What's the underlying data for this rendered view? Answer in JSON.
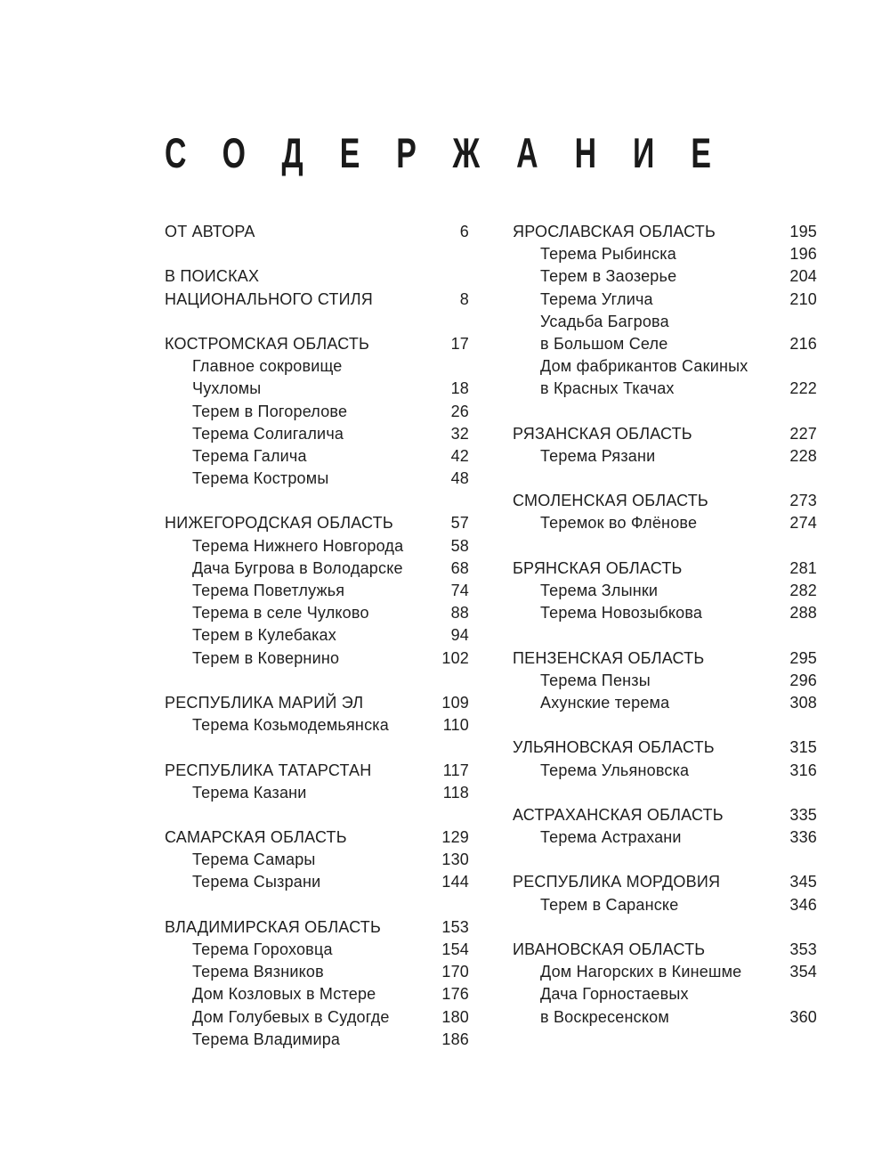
{
  "title": "СОДЕРЖАНИЕ",
  "columns": [
    [
      {
        "lines": [
          "ОТ АВТОРА"
        ],
        "page": "6",
        "items": []
      },
      {
        "lines": [
          "В ПОИСКАХ",
          "НАЦИОНАЛЬНОГО СТИЛЯ"
        ],
        "page": "8",
        "items": []
      },
      {
        "lines": [
          "КОСТРОМСКАЯ ОБЛАСТЬ"
        ],
        "page": "17",
        "items": [
          {
            "lines": [
              "Главное сокровище",
              "Чухломы"
            ],
            "page": "18"
          },
          {
            "lines": [
              "Терем в Погорелове"
            ],
            "page": "26"
          },
          {
            "lines": [
              "Терема Солигалича"
            ],
            "page": "32"
          },
          {
            "lines": [
              "Терема Галича"
            ],
            "page": "42"
          },
          {
            "lines": [
              "Терема Костромы"
            ],
            "page": "48"
          }
        ]
      },
      {
        "lines": [
          "НИЖЕГОРОДСКАЯ ОБЛАСТЬ"
        ],
        "page": "57",
        "items": [
          {
            "lines": [
              "Терема Нижнего Новгорода"
            ],
            "page": "58"
          },
          {
            "lines": [
              "Дача Бугрова в Володарске"
            ],
            "page": "68"
          },
          {
            "lines": [
              "Терема Поветлужья"
            ],
            "page": "74"
          },
          {
            "lines": [
              "Терема в селе Чулково"
            ],
            "page": "88"
          },
          {
            "lines": [
              "Терем в Кулебаках"
            ],
            "page": "94"
          },
          {
            "lines": [
              "Терем в Ковернино"
            ],
            "page": "102"
          }
        ]
      },
      {
        "lines": [
          "РЕСПУБЛИКА МАРИЙ ЭЛ"
        ],
        "page": "109",
        "items": [
          {
            "lines": [
              "Терема Козьмодемьянска"
            ],
            "page": "110"
          }
        ]
      },
      {
        "lines": [
          "РЕСПУБЛИКА ТАТАРСТАН"
        ],
        "page": "117",
        "items": [
          {
            "lines": [
              "Терема Казани"
            ],
            "page": "118"
          }
        ]
      },
      {
        "lines": [
          "САМАРСКАЯ ОБЛАСТЬ"
        ],
        "page": "129",
        "items": [
          {
            "lines": [
              "Терема Самары"
            ],
            "page": "130"
          },
          {
            "lines": [
              "Терема Сызрани"
            ],
            "page": "144"
          }
        ]
      },
      {
        "lines": [
          "ВЛАДИМИРСКАЯ ОБЛАСТЬ"
        ],
        "page": "153",
        "items": [
          {
            "lines": [
              "Терема Гороховца"
            ],
            "page": "154"
          },
          {
            "lines": [
              "Терема Вязников"
            ],
            "page": "170"
          },
          {
            "lines": [
              "Дом Козловых в Мстере"
            ],
            "page": "176"
          },
          {
            "lines": [
              "Дом Голубевых в Судогде"
            ],
            "page": "180"
          },
          {
            "lines": [
              "Терема Владимира"
            ],
            "page": "186"
          }
        ]
      }
    ],
    [
      {
        "lines": [
          "ЯРОСЛАВСКАЯ ОБЛАСТЬ"
        ],
        "page": "195",
        "items": [
          {
            "lines": [
              "Терема Рыбинска"
            ],
            "page": "196"
          },
          {
            "lines": [
              "Терем в Заозерье"
            ],
            "page": "204"
          },
          {
            "lines": [
              "Терема Углича"
            ],
            "page": "210"
          },
          {
            "lines": [
              "Усадьба Багрова",
              "в Большом Селе"
            ],
            "page": "216"
          },
          {
            "lines": [
              "Дом фабрикантов Сакиных",
              "в Красных Ткачах"
            ],
            "page": "222"
          }
        ]
      },
      {
        "lines": [
          "РЯЗАНСКАЯ ОБЛАСТЬ"
        ],
        "page": "227",
        "items": [
          {
            "lines": [
              "Терема Рязани"
            ],
            "page": "228"
          }
        ]
      },
      {
        "lines": [
          "СМОЛЕНСКАЯ ОБЛАСТЬ"
        ],
        "page": "273",
        "items": [
          {
            "lines": [
              "Теремок во Флёнове"
            ],
            "page": "274"
          }
        ]
      },
      {
        "lines": [
          "БРЯНСКАЯ ОБЛАСТЬ"
        ],
        "page": "281",
        "items": [
          {
            "lines": [
              "Терема Злынки"
            ],
            "page": "282"
          },
          {
            "lines": [
              "Терема Новозыбкова"
            ],
            "page": "288"
          }
        ]
      },
      {
        "lines": [
          "ПЕНЗЕНСКАЯ ОБЛАСТЬ"
        ],
        "page": "295",
        "items": [
          {
            "lines": [
              "Терема Пензы"
            ],
            "page": "296"
          },
          {
            "lines": [
              "Ахунские терема"
            ],
            "page": "308"
          }
        ]
      },
      {
        "lines": [
          "УЛЬЯНОВСКАЯ ОБЛАСТЬ"
        ],
        "page": "315",
        "items": [
          {
            "lines": [
              "Терема Ульяновска"
            ],
            "page": "316"
          }
        ]
      },
      {
        "lines": [
          "АСТРАХАНСКАЯ ОБЛАСТЬ"
        ],
        "page": "335",
        "items": [
          {
            "lines": [
              "Терема Астрахани"
            ],
            "page": "336"
          }
        ]
      },
      {
        "lines": [
          "РЕСПУБЛИКА МОРДОВИЯ"
        ],
        "page": "345",
        "items": [
          {
            "lines": [
              "Терем в Саранске"
            ],
            "page": "346"
          }
        ]
      },
      {
        "lines": [
          "ИВАНОВСКАЯ ОБЛАСТЬ"
        ],
        "page": "353",
        "items": [
          {
            "lines": [
              "Дом Нагорских в Кинешме"
            ],
            "page": "354"
          },
          {
            "lines": [
              "Дача Горностаевых",
              "в Воскресенском"
            ],
            "page": "360"
          }
        ]
      }
    ]
  ]
}
